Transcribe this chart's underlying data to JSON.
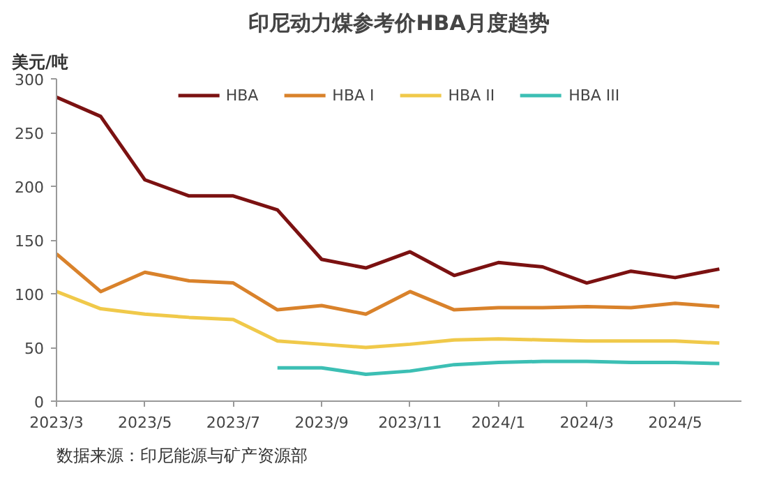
{
  "chart_data": {
    "type": "line",
    "title": "印尼动力煤参考价HBA月度趋势",
    "ylabel": "美元/吨",
    "categories": [
      "2023/3",
      null,
      "2023/5",
      null,
      "2023/7",
      null,
      "2023/9",
      null,
      "2023/11",
      null,
      "2024/1",
      null,
      "2024/3",
      null,
      "2024/5",
      null
    ],
    "series": [
      {
        "name": "HBA",
        "color": "#7b1111",
        "values": [
          283,
          265,
          206,
          191,
          191,
          178,
          132,
          124,
          139,
          117,
          129,
          125,
          110,
          121,
          115,
          123
        ]
      },
      {
        "name": "HBA I",
        "color": "#d9822b",
        "values": [
          137,
          102,
          120,
          112,
          110,
          85,
          89,
          81,
          102,
          85,
          87,
          87,
          88,
          87,
          91,
          88
        ]
      },
      {
        "name": "HBA II",
        "color": "#f0c94a",
        "values": [
          102,
          86,
          81,
          78,
          76,
          56,
          53,
          50,
          53,
          57,
          58,
          57,
          56,
          56,
          56,
          54
        ]
      },
      {
        "name": "HBA III",
        "color": "#3cbfb4",
        "values": [
          null,
          null,
          null,
          null,
          null,
          31,
          31,
          25,
          28,
          34,
          36,
          37,
          37,
          36,
          36,
          35
        ]
      }
    ],
    "ylim": [
      0,
      300
    ],
    "yticks": [
      0,
      50,
      100,
      150,
      200,
      250,
      300
    ],
    "grid": false,
    "legend": "top",
    "marker": "none",
    "line_style": "solid",
    "annotations": [
      "数据来源：印尼能源与矿产资源部"
    ]
  }
}
